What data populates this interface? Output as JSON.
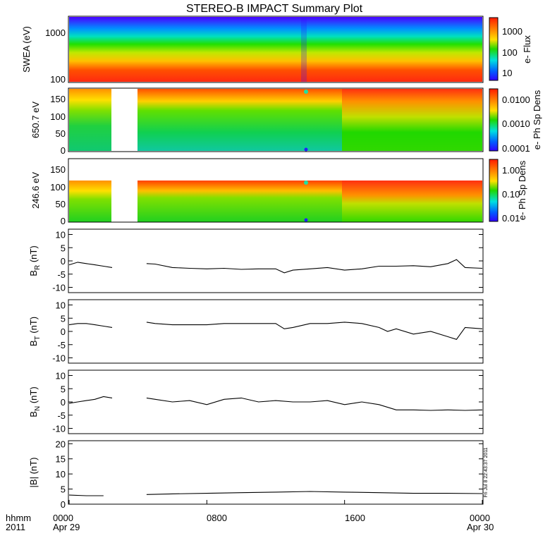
{
  "title": "STEREO-B IMPACT Summary Plot",
  "footer": {
    "format_label": "hhmm",
    "year_label": "2011",
    "x_ticks": [
      "0000",
      "0800",
      "1600",
      "0000"
    ],
    "date_start": "Apr 29",
    "date_end": "Apr 30"
  },
  "stamp": "Fri Jul 8 22:43:37 2011",
  "chart_data": [
    {
      "type": "heatmap",
      "ylabel": "SWEA (eV)",
      "yscale": "log",
      "ylim": [
        100,
        2000
      ],
      "ytick_labels": [
        "1000",
        "100"
      ],
      "colorbar_label": "e- Flux",
      "colorbar_ticks": [
        "1000",
        "100",
        "10"
      ],
      "colorbar_range": [
        1,
        5000
      ],
      "colors": [
        "#ff2020",
        "#ff8a00",
        "#ffd400",
        "#00d800",
        "#00e8e8",
        "#0060ff",
        "#2000ff"
      ],
      "description_values": {
        "low_energy_flux": 2000,
        "high_energy_flux": 5
      }
    },
    {
      "type": "heatmap",
      "ylabel": "650.7 eV",
      "ylim": [
        0,
        180
      ],
      "ytick_labels": [
        "150",
        "100",
        "50",
        "0"
      ],
      "colorbar_label": "e- Ph Sp Dens",
      "colorbar_ticks": [
        "0.0100",
        "0.0010",
        "0.0001"
      ],
      "data_gap_hours": [
        3.0,
        4.6
      ]
    },
    {
      "type": "heatmap",
      "ylabel": "246.6 eV",
      "ylim": [
        0,
        180
      ],
      "ytick_labels": [
        "150",
        "100",
        "50",
        "0"
      ],
      "colorbar_label": "e- Ph Sp Dens",
      "colorbar_ticks": [
        "1.00",
        "0.10",
        "0.01"
      ],
      "data_gap_hours": [
        3.0,
        4.6
      ]
    },
    {
      "type": "line",
      "ylabel_main": "B",
      "ylabel_sub": "R",
      "ylabel_unit": " (nT)",
      "ylim": [
        -12,
        12
      ],
      "ytick_labels": [
        "10",
        "5",
        "0",
        "-5",
        "-10"
      ],
      "ytick_values": [
        10,
        5,
        0,
        -5,
        -10
      ],
      "x": [
        0,
        0.5,
        1,
        1.5,
        2,
        2.5,
        3,
        4.5,
        5,
        6,
        7,
        8,
        9,
        10,
        11,
        12,
        12.5,
        13,
        14,
        15,
        16,
        17,
        18,
        19,
        20,
        21,
        22,
        22.5,
        23,
        24
      ],
      "values": [
        -1.5,
        -0.5,
        -1,
        -1.5,
        -2,
        -2.5,
        -2,
        -1,
        -1.2,
        -2.5,
        -2.8,
        -3,
        -2.8,
        -3.2,
        -3,
        -3,
        -4.5,
        -3.5,
        -3,
        -2.5,
        -3.5,
        -3,
        -2,
        -2,
        -1.8,
        -2.2,
        -1,
        0.5,
        -2.5,
        -2.8
      ]
    },
    {
      "type": "line",
      "ylabel_main": "B",
      "ylabel_sub": "T",
      "ylabel_unit": " (nT)",
      "ylim": [
        -12,
        12
      ],
      "ytick_labels": [
        "10",
        "5",
        "0",
        "-5",
        "-10"
      ],
      "ytick_values": [
        10,
        5,
        0,
        -5,
        -10
      ],
      "x": [
        0,
        0.5,
        1,
        1.5,
        2,
        2.5,
        3,
        4.5,
        5,
        6,
        7,
        8,
        9,
        10,
        11,
        12,
        12.5,
        13,
        14,
        15,
        16,
        17,
        18,
        18.5,
        19,
        20,
        21,
        22,
        22.5,
        23,
        24
      ],
      "values": [
        2.5,
        3,
        3,
        2.5,
        2,
        1.5,
        2,
        3.5,
        3,
        2.5,
        2.5,
        2.5,
        3,
        3,
        3,
        3,
        1,
        1.5,
        3,
        3,
        3.5,
        3,
        1.5,
        0,
        1,
        -1,
        0,
        -2,
        -3,
        1.5,
        1
      ]
    },
    {
      "type": "line",
      "ylabel_main": "B",
      "ylabel_sub": "N",
      "ylabel_unit": " (nT)",
      "ylim": [
        -12,
        12
      ],
      "ytick_labels": [
        "10",
        "5",
        "0",
        "-5",
        "-10"
      ],
      "ytick_values": [
        10,
        5,
        0,
        -5,
        -10
      ],
      "x": [
        0,
        0.5,
        1,
        1.5,
        2,
        2.5,
        3,
        4.5,
        5,
        6,
        7,
        8,
        9,
        10,
        11,
        12,
        13,
        14,
        15,
        16,
        17,
        18,
        19,
        20,
        21,
        22,
        23,
        24
      ],
      "values": [
        -0.5,
        0,
        0.5,
        1,
        2,
        1.5,
        0.5,
        1.5,
        1,
        0,
        0.5,
        -1,
        1,
        1.5,
        0,
        0.5,
        0,
        0,
        0.5,
        -1,
        0,
        -1,
        -3,
        -3,
        -3.2,
        -3,
        -3.2,
        -3
      ]
    },
    {
      "type": "line",
      "ylabel_main": "|B|",
      "ylabel_sub": "",
      "ylabel_unit": " (nT)",
      "ylim": [
        0,
        21
      ],
      "ytick_labels": [
        "20",
        "15",
        "10",
        "5",
        "0"
      ],
      "ytick_values": [
        20,
        15,
        10,
        5,
        0
      ],
      "x": [
        0,
        1,
        2,
        3,
        4.5,
        6,
        8,
        10,
        12,
        14,
        16,
        18,
        20,
        22,
        24
      ],
      "values": [
        3,
        2.8,
        2.8,
        2.6,
        3.2,
        3.4,
        3.6,
        3.8,
        4.0,
        4.2,
        4.0,
        3.8,
        3.6,
        3.6,
        3.5
      ]
    }
  ],
  "colors": {
    "line": "#000000",
    "frame": "#000000",
    "heat_high": "#ff2020",
    "heat_mid": "#ffd400",
    "heat_green": "#00d800",
    "heat_low": "#2000ff"
  }
}
